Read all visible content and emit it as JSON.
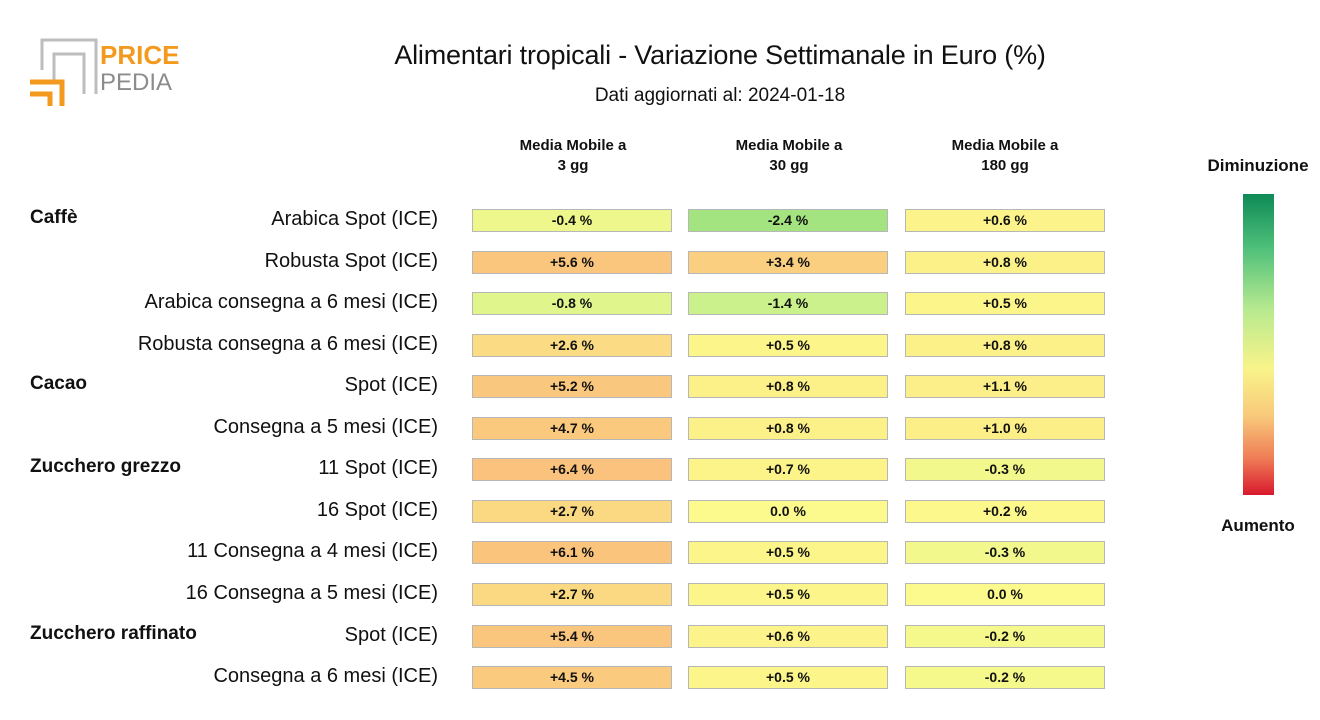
{
  "header": {
    "logo_text_top": "PRICE",
    "logo_text_bottom": "PEDIA",
    "title": "Alimentari tropicali - Variazione Settimanale in Euro (%)",
    "subtitle": "Dati aggiornati al: 2024-01-18"
  },
  "columns": [
    {
      "line1": "Media Mobile a",
      "line2": "3 gg"
    },
    {
      "line1": "Media Mobile a",
      "line2": "30 gg"
    },
    {
      "line1": "Media Mobile a",
      "line2": "180 gg"
    }
  ],
  "legend": {
    "top_label": "Diminuzione",
    "bottom_label": "Aumento",
    "colors": [
      "#0e8a57",
      "#4fc07a",
      "#b6e98f",
      "#f9f48a",
      "#f8c87a",
      "#ef7b55",
      "#d8192d"
    ]
  },
  "chart_data": {
    "type": "heatmap",
    "title": "Alimentari tropicali - Variazione Settimanale in Euro (%)",
    "subtitle": "Dati aggiornati al: 2024-01-18",
    "columns": [
      "Media Mobile a 3 gg",
      "Media Mobile a 30 gg",
      "Media Mobile a 180 gg"
    ],
    "groups": [
      "Caffè",
      "Cacao",
      "Zucchero grezzo",
      "Zucchero raffinato"
    ],
    "rows": [
      {
        "group": "Caffè",
        "label": "Arabica Spot (ICE)",
        "values": [
          -0.4,
          -2.4,
          0.6
        ],
        "texts": [
          "-0.4 %",
          "-2.4 %",
          "+0.6 %"
        ]
      },
      {
        "group": "",
        "label": "Robusta Spot (ICE)",
        "values": [
          5.6,
          3.4,
          0.8
        ],
        "texts": [
          "+5.6 %",
          "+3.4 %",
          "+0.8 %"
        ]
      },
      {
        "group": "",
        "label": "Arabica consegna a 6 mesi (ICE)",
        "values": [
          -0.8,
          -1.4,
          0.5
        ],
        "texts": [
          "-0.8 %",
          "-1.4 %",
          "+0.5 %"
        ]
      },
      {
        "group": "",
        "label": "Robusta consegna a 6 mesi (ICE)",
        "values": [
          2.6,
          0.5,
          0.8
        ],
        "texts": [
          "+2.6 %",
          "+0.5 %",
          "+0.8 %"
        ]
      },
      {
        "group": "Cacao",
        "label": "Spot (ICE)",
        "values": [
          5.2,
          0.8,
          1.1
        ],
        "texts": [
          "+5.2 %",
          "+0.8 %",
          "+1.1 %"
        ]
      },
      {
        "group": "",
        "label": "Consegna a 5 mesi (ICE)",
        "values": [
          4.7,
          0.8,
          1.0
        ],
        "texts": [
          "+4.7 %",
          "+0.8 %",
          "+1.0 %"
        ]
      },
      {
        "group": "Zucchero grezzo",
        "label": "11 Spot (ICE)",
        "values": [
          6.4,
          0.7,
          -0.3
        ],
        "texts": [
          "+6.4 %",
          "+0.7 %",
          "-0.3 %"
        ]
      },
      {
        "group": "",
        "label": "16 Spot (ICE)",
        "values": [
          2.7,
          0.0,
          0.2
        ],
        "texts": [
          "+2.7 %",
          "0.0 %",
          "+0.2 %"
        ]
      },
      {
        "group": "",
        "label": "11 Consegna a 4 mesi (ICE)",
        "values": [
          6.1,
          0.5,
          -0.3
        ],
        "texts": [
          "+6.1 %",
          "+0.5 %",
          "-0.3 %"
        ]
      },
      {
        "group": "",
        "label": "16 Consegna a 5 mesi (ICE)",
        "values": [
          2.7,
          0.5,
          0.0
        ],
        "texts": [
          "+2.7 %",
          "+0.5 %",
          "0.0 %"
        ]
      },
      {
        "group": "Zucchero raffinato",
        "label": "Spot (ICE)",
        "values": [
          5.4,
          0.6,
          -0.2
        ],
        "texts": [
          "+5.4 %",
          "+0.6 %",
          "-0.2 %"
        ]
      },
      {
        "group": "",
        "label": "Consegna a 6 mesi (ICE)",
        "values": [
          4.5,
          0.5,
          -0.2
        ],
        "texts": [
          "+4.5 %",
          "+0.5 %",
          "-0.2 %"
        ]
      }
    ]
  }
}
